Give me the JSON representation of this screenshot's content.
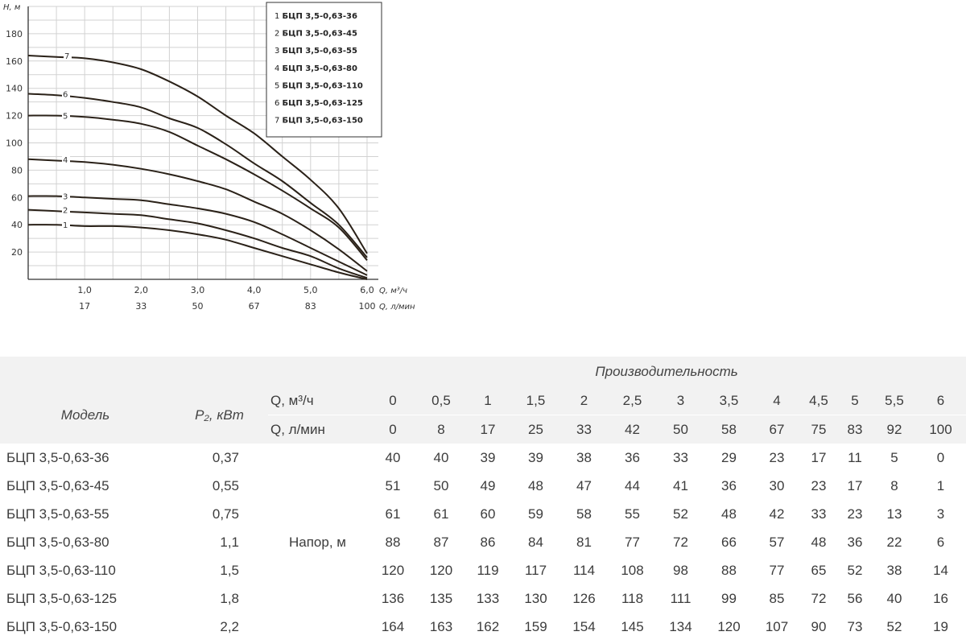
{
  "chart_data": {
    "type": "line",
    "y_axis_label": "H, м",
    "x_axis_label_primary": "Q, м³/ч",
    "x_axis_label_secondary": "Q, л/мин",
    "y_ticks": [
      "20",
      "40",
      "60",
      "80",
      "100",
      "120",
      "140",
      "160",
      "180"
    ],
    "x_ticks_primary": [
      "1,0",
      "2,0",
      "3,0",
      "4,0",
      "5,0",
      "6,0"
    ],
    "x_ticks_secondary": [
      "17",
      "33",
      "50",
      "67",
      "83",
      "100"
    ],
    "xlim": [
      0,
      6.2
    ],
    "ylim": [
      0,
      200
    ],
    "grid": true,
    "legend_position": "top-right",
    "x": [
      0,
      0.5,
      1,
      1.5,
      2,
      2.5,
      3,
      3.5,
      4,
      4.5,
      5,
      5.5,
      6
    ],
    "series": [
      {
        "label": "1",
        "name": "БЦП 3,5-0,63-36",
        "values": [
          40,
          40,
          39,
          39,
          38,
          36,
          33,
          29,
          23,
          17,
          11,
          5,
          0
        ]
      },
      {
        "label": "2",
        "name": "БЦП 3,5-0,63-45",
        "values": [
          51,
          50,
          49,
          48,
          47,
          44,
          41,
          36,
          30,
          23,
          17,
          8,
          1
        ]
      },
      {
        "label": "3",
        "name": "БЦП 3,5-0,63-55",
        "values": [
          61,
          61,
          60,
          59,
          58,
          55,
          52,
          48,
          42,
          33,
          23,
          13,
          3
        ]
      },
      {
        "label": "4",
        "name": "БЦП 3,5-0,63-80",
        "values": [
          88,
          87,
          86,
          84,
          81,
          77,
          72,
          66,
          57,
          48,
          36,
          22,
          6
        ]
      },
      {
        "label": "5",
        "name": "БЦП 3,5-0,63-110",
        "values": [
          120,
          120,
          119,
          117,
          114,
          108,
          98,
          88,
          77,
          65,
          52,
          38,
          14
        ]
      },
      {
        "label": "6",
        "name": "БЦП 3,5-0,63-125",
        "values": [
          136,
          135,
          133,
          130,
          126,
          118,
          111,
          99,
          85,
          72,
          56,
          40,
          16
        ]
      },
      {
        "label": "7",
        "name": "БЦП 3,5-0,63-150",
        "values": [
          164,
          163,
          162,
          159,
          154,
          145,
          134,
          120,
          107,
          90,
          73,
          52,
          19
        ]
      }
    ]
  },
  "table": {
    "title": "Производительность",
    "model_header": "Модель",
    "power_header": "P₂, кВт",
    "q_m3_label": "Q, м³/ч",
    "q_lmin_label": "Q, л/мин",
    "q_m3_values": [
      "0",
      "0,5",
      "1",
      "1,5",
      "2",
      "2,5",
      "3",
      "3,5",
      "4",
      "4,5",
      "5",
      "5,5",
      "6"
    ],
    "q_lmin_values": [
      "0",
      "8",
      "17",
      "25",
      "33",
      "42",
      "50",
      "58",
      "67",
      "75",
      "83",
      "92",
      "100"
    ],
    "head_label": "Напор, м",
    "rows": [
      {
        "model": "БЦП 3,5-0,63-36",
        "power": "0,37",
        "heads": [
          "40",
          "40",
          "39",
          "39",
          "38",
          "36",
          "33",
          "29",
          "23",
          "17",
          "11",
          "5",
          "0"
        ]
      },
      {
        "model": "БЦП 3,5-0,63-45",
        "power": "0,55",
        "heads": [
          "51",
          "50",
          "49",
          "48",
          "47",
          "44",
          "41",
          "36",
          "30",
          "23",
          "17",
          "8",
          "1"
        ]
      },
      {
        "model": "БЦП 3,5-0,63-55",
        "power": "0,75",
        "heads": [
          "61",
          "61",
          "60",
          "59",
          "58",
          "55",
          "52",
          "48",
          "42",
          "33",
          "23",
          "13",
          "3"
        ]
      },
      {
        "model": "БЦП 3,5-0,63-80",
        "power": "1,1",
        "heads": [
          "88",
          "87",
          "86",
          "84",
          "81",
          "77",
          "72",
          "66",
          "57",
          "48",
          "36",
          "22",
          "6"
        ]
      },
      {
        "model": "БЦП 3,5-0,63-110",
        "power": "1,5",
        "heads": [
          "120",
          "120",
          "119",
          "117",
          "114",
          "108",
          "98",
          "88",
          "77",
          "65",
          "52",
          "38",
          "14"
        ]
      },
      {
        "model": "БЦП 3,5-0,63-125",
        "power": "1,8",
        "heads": [
          "136",
          "135",
          "133",
          "130",
          "126",
          "118",
          "111",
          "99",
          "85",
          "72",
          "56",
          "40",
          "16"
        ]
      },
      {
        "model": "БЦП 3,5-0,63-150",
        "power": "2,2",
        "heads": [
          "164",
          "163",
          "162",
          "159",
          "154",
          "145",
          "134",
          "120",
          "107",
          "90",
          "73",
          "52",
          "19"
        ]
      }
    ]
  }
}
